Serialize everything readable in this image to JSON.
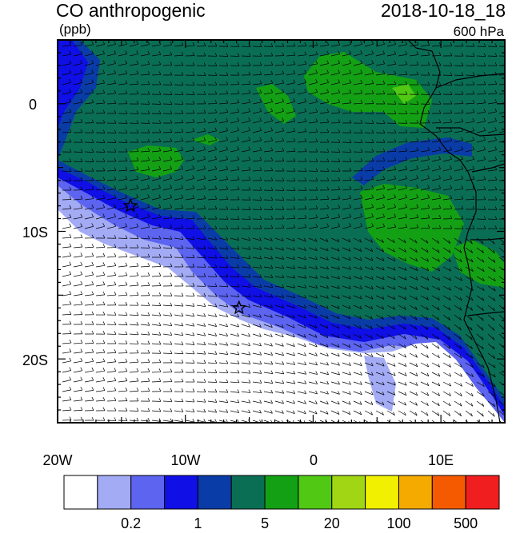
{
  "title_left": "CO anthropogenic",
  "title_right": "2018-10-18_18",
  "units": "(ppb)",
  "level": "600 hPa",
  "axes": {
    "lon_range": [
      -20,
      15
    ],
    "lat_range": [
      -25,
      5
    ],
    "x_ticks": [
      {
        "value": -20,
        "label": "20W"
      },
      {
        "value": -10,
        "label": "10W"
      },
      {
        "value": 0,
        "label": "0"
      },
      {
        "value": 10,
        "label": "10E"
      }
    ],
    "y_ticks": [
      {
        "value": 0,
        "label": "0"
      },
      {
        "value": -10,
        "label": "10S"
      },
      {
        "value": -20,
        "label": "20S"
      }
    ]
  },
  "colorbar": {
    "colors": [
      "#ffffff",
      "#a3abf5",
      "#5c64f0",
      "#0f0fe6",
      "#0a3ca8",
      "#0a6e55",
      "#14a014",
      "#50c814",
      "#a0d614",
      "#f0f000",
      "#f5aa00",
      "#f55a00",
      "#f01e1e"
    ],
    "labels": [
      {
        "after_box": 2,
        "text": "0.2"
      },
      {
        "after_box": 4,
        "text": "1"
      },
      {
        "after_box": 6,
        "text": "5"
      },
      {
        "after_box": 8,
        "text": "20"
      },
      {
        "after_box": 10,
        "text": "100"
      },
      {
        "after_box": 12,
        "text": "500"
      }
    ]
  },
  "markers": [
    {
      "name": "star-marker-north",
      "lon": -14.3,
      "lat": -8.0
    },
    {
      "name": "star-marker-south",
      "lon": -5.8,
      "lat": -16.0
    }
  ]
}
